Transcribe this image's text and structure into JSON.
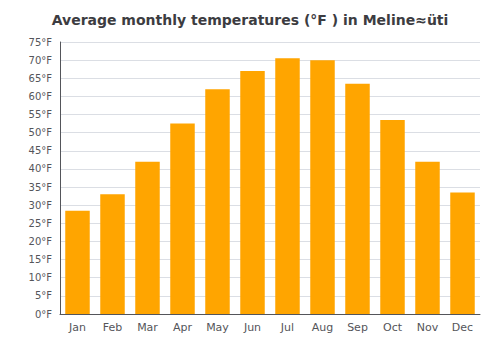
{
  "chart_data": {
    "type": "bar",
    "title": "Average monthly temperatures (°F ) in Meline≈üti",
    "categories": [
      "Jan",
      "Feb",
      "Mar",
      "Apr",
      "May",
      "Jun",
      "Jul",
      "Aug",
      "Sep",
      "Oct",
      "Nov",
      "Dec"
    ],
    "values": [
      28.5,
      33.0,
      42.0,
      52.5,
      62.0,
      67.0,
      70.5,
      70.0,
      63.5,
      53.5,
      42.0,
      33.5
    ],
    "color": "#FFA500",
    "ylim": [
      0,
      75
    ],
    "yticks": [
      {
        "value": 0,
        "label": "0°F"
      },
      {
        "value": 5,
        "label": "5°F"
      },
      {
        "value": 10,
        "label": "10°F"
      },
      {
        "value": 15,
        "label": "15°F"
      },
      {
        "value": 20,
        "label": "20°F"
      },
      {
        "value": 25,
        "label": "25°F"
      },
      {
        "value": 30,
        "label": "30°F"
      },
      {
        "value": 35,
        "label": "35°F"
      },
      {
        "value": 40,
        "label": "40°F"
      },
      {
        "value": 45,
        "label": "45°F"
      },
      {
        "value": 50,
        "label": "50°F"
      },
      {
        "value": 55,
        "label": "55°F"
      },
      {
        "value": 60,
        "label": "60°F"
      },
      {
        "value": 65,
        "label": "65°F"
      },
      {
        "value": 70,
        "label": "70°F"
      },
      {
        "value": 75,
        "label": "75°F"
      }
    ],
    "grid": true
  }
}
